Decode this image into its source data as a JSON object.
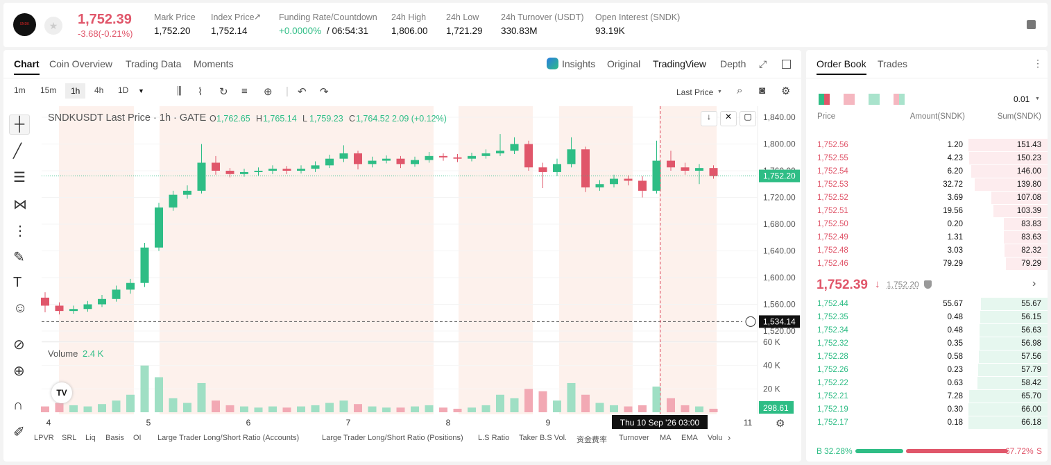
{
  "header": {
    "symbol_logo": "SNDK",
    "price": "1,752.39",
    "change": "-3.68(-0.21%)",
    "stats": [
      {
        "label": "Mark Price",
        "value": "1,752.20"
      },
      {
        "label": "Index Price",
        "value": "1,752.14"
      },
      {
        "label": "Funding Rate/Countdown",
        "value": "+0.0000%",
        "extra": "/ 06:54:31"
      },
      {
        "label": "24h High",
        "value": "1,806.00"
      },
      {
        "label": "24h Low",
        "value": "1,721.29"
      },
      {
        "label": "24h Turnover (USDT)",
        "value": "330.83M"
      },
      {
        "label": "Open Interest (SNDK)",
        "value": "93.19K"
      }
    ]
  },
  "tabs": [
    "Chart",
    "Coin Overview",
    "Trading Data",
    "Moments"
  ],
  "views": [
    "Insights",
    "Original",
    "TradingView",
    "Depth"
  ],
  "intervals": [
    "1m",
    "15m",
    "1h",
    "4h",
    "1D"
  ],
  "price_source": "Last Price",
  "legend": {
    "title": "SNDKUSDT Last Price · 1h · GATE",
    "o_label": "O",
    "o": "1,762.65",
    "h_label": "H",
    "h": "1,765.14",
    "l_label": "L",
    "l": "1,759.23",
    "c_label": "C",
    "c": "1,764.52",
    "change": "2.09 (+0.12%)"
  },
  "chart": {
    "type": "candlestick",
    "open": [
      1570,
      1558,
      1550,
      1553,
      1560,
      1568,
      1582,
      1592,
      1645,
      1705,
      1724,
      1730,
      1772,
      1760,
      1755,
      1758,
      1760,
      1763,
      1760,
      1763,
      1768,
      1778,
      1786,
      1770,
      1775,
      1778,
      1770,
      1776,
      1782,
      1780,
      1778,
      1782,
      1786,
      1790,
      1800,
      1765,
      1758,
      1770,
      1792,
      1735,
      1740,
      1748,
      1745,
      1730,
      1775,
      1765,
      1760,
      1764
    ],
    "high": [
      1578,
      1563,
      1558,
      1565,
      1574,
      1588,
      1598,
      1652,
      1712,
      1730,
      1738,
      1800,
      1782,
      1764,
      1763,
      1765,
      1768,
      1767,
      1768,
      1774,
      1784,
      1798,
      1790,
      1781,
      1783,
      1782,
      1781,
      1788,
      1786,
      1785,
      1787,
      1792,
      1815,
      1810,
      1805,
      1772,
      1778,
      1810,
      1796,
      1746,
      1754,
      1753,
      1752,
      1805,
      1790,
      1772,
      1770,
      1768
    ],
    "low": [
      1548,
      1545,
      1546,
      1549,
      1556,
      1564,
      1576,
      1586,
      1640,
      1700,
      1718,
      1726,
      1754,
      1750,
      1751,
      1753,
      1755,
      1755,
      1756,
      1758,
      1764,
      1773,
      1762,
      1765,
      1771,
      1764,
      1766,
      1772,
      1775,
      1773,
      1774,
      1778,
      1782,
      1785,
      1760,
      1734,
      1752,
      1765,
      1728,
      1730,
      1735,
      1738,
      1720,
      1726,
      1760,
      1754,
      1740,
      1748
    ],
    "close": [
      1558,
      1550,
      1553,
      1560,
      1568,
      1582,
      1592,
      1645,
      1705,
      1724,
      1730,
      1772,
      1760,
      1755,
      1758,
      1760,
      1763,
      1760,
      1763,
      1768,
      1778,
      1786,
      1770,
      1775,
      1778,
      1770,
      1776,
      1782,
      1780,
      1778,
      1782,
      1786,
      1790,
      1800,
      1765,
      1758,
      1770,
      1792,
      1735,
      1740,
      1748,
      1745,
      1730,
      1775,
      1765,
      1760,
      1764,
      1752
    ],
    "volume": [
      5000,
      8000,
      6000,
      5000,
      7000,
      10000,
      15000,
      40000,
      30000,
      12000,
      8000,
      25000,
      10000,
      6000,
      5000,
      4000,
      5000,
      4000,
      5000,
      6000,
      8000,
      10000,
      7000,
      5000,
      4000,
      4000,
      5000,
      6000,
      4000,
      3000,
      4000,
      6000,
      15000,
      12000,
      20000,
      18000,
      10000,
      25000,
      15000,
      8000,
      6000,
      5000,
      6000,
      22000,
      12000,
      6000,
      5000,
      3000
    ],
    "ylim": [
      1520,
      1840
    ],
    "yticks": [
      {
        "value": 1520,
        "label": "1,520.00"
      },
      {
        "value": 1560,
        "label": "1,560.00"
      },
      {
        "value": 1600,
        "label": "1,600.00"
      },
      {
        "value": 1640,
        "label": "1,640.00"
      },
      {
        "value": 1680,
        "label": "1,680.00"
      },
      {
        "value": 1720,
        "label": "1,720.00"
      },
      {
        "value": 1760,
        "label": "1,760.00"
      },
      {
        "value": 1800,
        "label": "1,800.00"
      },
      {
        "value": 1840,
        "label": "1,840.00"
      }
    ],
    "vol_ylim": [
      0,
      60000
    ],
    "vol_yticks": [
      {
        "value": 20000,
        "label": "20 K"
      },
      {
        "value": 40000,
        "label": "40 K"
      },
      {
        "value": 60000,
        "label": "60 K"
      }
    ],
    "mark_price": {
      "value": 1752.2,
      "label": "1,752.20"
    },
    "crosshair": {
      "value": 1534.14,
      "label": "1,534.14"
    },
    "crosshair_time": "Thu 10 Sep '26   03:00",
    "x_labels": [
      "4",
      "5",
      "6",
      "7",
      "8",
      "9",
      "11"
    ],
    "volume_title": "Volume",
    "volume_value": "2.4 K",
    "last_volume": "298.61"
  },
  "indicators": [
    "LPVR",
    "SRL",
    "Liq",
    "Basis",
    "OI",
    "Large Trader Long/Short Ratio (Accounts)",
    "Large Trader Long/Short Ratio (Positions)",
    "L.S Ratio",
    "Taker B.S Vol.",
    "资金费率",
    "Turnover",
    "MA",
    "EMA",
    "Volu"
  ],
  "order_book": {
    "tabs": [
      "Order Book",
      "Trades"
    ],
    "precision": "0.01",
    "columns": [
      "Price",
      "Amount(SNDK)",
      "Sum(SNDK)"
    ],
    "asks": [
      [
        "1,752.56",
        "1.20",
        "151.43"
      ],
      [
        "1,752.55",
        "4.23",
        "150.23"
      ],
      [
        "1,752.54",
        "6.20",
        "146.00"
      ],
      [
        "1,752.53",
        "32.72",
        "139.80"
      ],
      [
        "1,752.52",
        "3.69",
        "107.08"
      ],
      [
        "1,752.51",
        "19.56",
        "103.39"
      ],
      [
        "1,752.50",
        "0.20",
        "83.83"
      ],
      [
        "1,752.49",
        "1.31",
        "83.63"
      ],
      [
        "1,752.48",
        "3.03",
        "82.32"
      ],
      [
        "1,752.46",
        "79.29",
        "79.29"
      ]
    ],
    "last_price": "1,752.39",
    "mark_price": "1,752.20",
    "bids": [
      [
        "1,752.44",
        "55.67",
        "55.67"
      ],
      [
        "1,752.35",
        "0.48",
        "56.15"
      ],
      [
        "1,752.34",
        "0.48",
        "56.63"
      ],
      [
        "1,752.32",
        "0.35",
        "56.98"
      ],
      [
        "1,752.28",
        "0.58",
        "57.56"
      ],
      [
        "1,752.26",
        "0.23",
        "57.79"
      ],
      [
        "1,752.22",
        "0.63",
        "58.42"
      ],
      [
        "1,752.21",
        "7.28",
        "65.70"
      ],
      [
        "1,752.19",
        "0.30",
        "66.00"
      ],
      [
        "1,752.17",
        "0.18",
        "66.18"
      ]
    ],
    "buy_ratio": {
      "letter": "B",
      "value": 32.28,
      "label": "32.28%"
    },
    "sell_ratio": {
      "letter": "S",
      "value": 67.72,
      "label": "67.72%"
    }
  }
}
